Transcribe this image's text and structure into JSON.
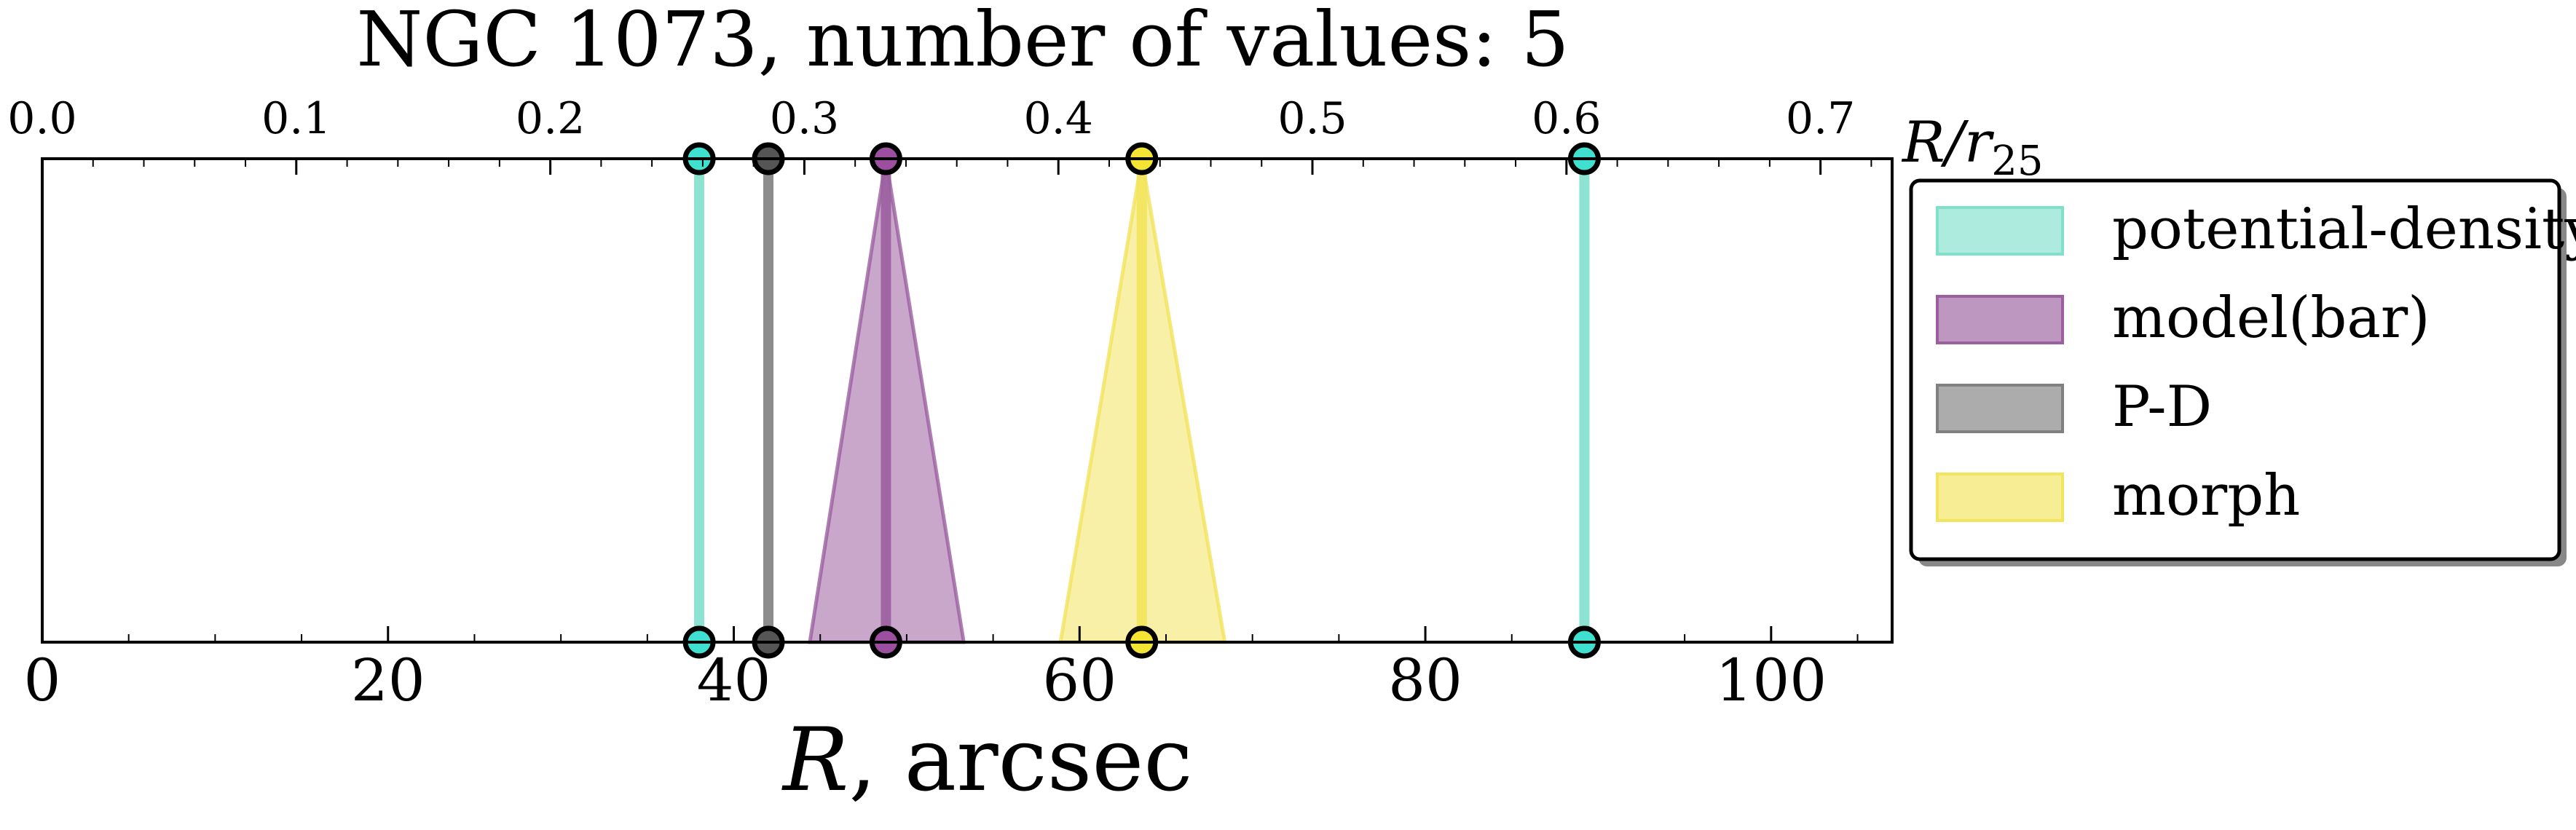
{
  "chart_data": {
    "type": "scatter",
    "title": "NGC 1073, number of values: 5",
    "xlabel_main": "R",
    "xlabel_suffix": ", arcsec",
    "top_axis_label": "R/r",
    "top_axis_label_sub": "25",
    "xlim": [
      0,
      107
    ],
    "top_xlim": [
      0,
      0.7282
    ],
    "bottom_ticks": [
      "0",
      "20",
      "40",
      "60",
      "80",
      "100"
    ],
    "bottom_tick_values": [
      0,
      20,
      40,
      60,
      80,
      100
    ],
    "top_ticks": [
      "0.0",
      "0.1",
      "0.2",
      "0.3",
      "0.4",
      "0.5",
      "0.6",
      "0.7"
    ],
    "top_tick_values": [
      0.0,
      0.1,
      0.2,
      0.3,
      0.4,
      0.5,
      0.6,
      0.7
    ],
    "grid": false,
    "legend_position": "outside-right",
    "series": [
      {
        "name": "potential-density",
        "color": "#7fe0cc",
        "marker_fill": "#40e0d0",
        "style": "line",
        "values": [
          38.0,
          89.2
        ]
      },
      {
        "name": "model(bar)",
        "color": "#9b5fa0",
        "marker_fill": "#9b4f9e",
        "style": "triangle",
        "values": [
          48.8
        ],
        "range": [
          44.4,
          53.3
        ]
      },
      {
        "name": "P-D",
        "color": "#808080",
        "marker_fill": "#555555",
        "style": "line",
        "values": [
          42.0
        ]
      },
      {
        "name": "morph",
        "color": "#f2e45c",
        "marker_fill": "#f4e433",
        "style": "triangle",
        "values": [
          63.6
        ],
        "range": [
          58.9,
          68.4
        ]
      }
    ]
  }
}
